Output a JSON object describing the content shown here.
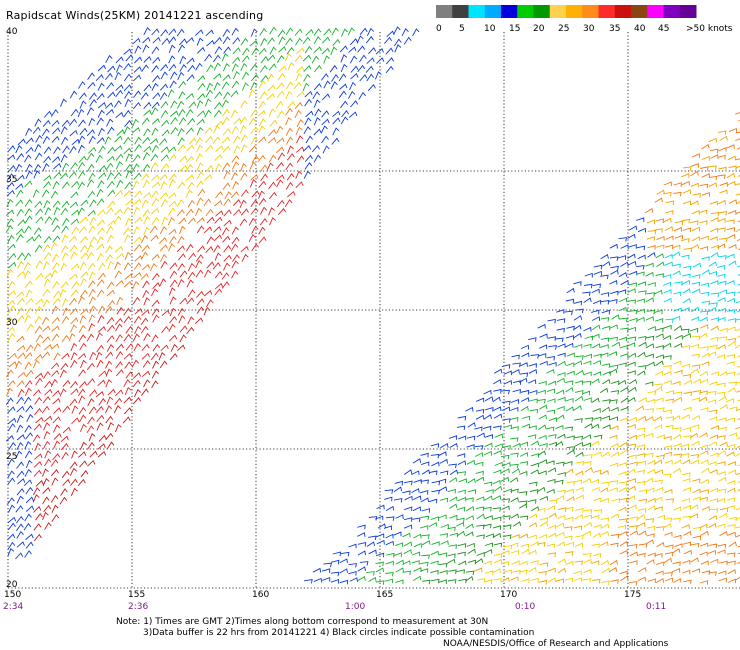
{
  "title": "Rapidscat Winds(25KM) 20141221 ascending",
  "legend": {
    "labels": [
      "0",
      "5",
      "10",
      "15",
      "20",
      "25",
      "30",
      "35",
      "40",
      "45",
      ">50 knots"
    ],
    "colors": [
      "#7f7f7f",
      "#404040",
      "#00e5ff",
      "#00aaff",
      "#0000dd",
      "#00cc00",
      "#009900",
      "#ffd24d",
      "#ffb000",
      "#ff8c1a",
      "#ff2b2b",
      "#cc1010",
      "#8b4513",
      "#ff00ff",
      "#8000c0",
      "#660099"
    ]
  },
  "lat_labels": [
    "40",
    "35",
    "30",
    "25",
    "20"
  ],
  "lon_labels": [
    "150",
    "155",
    "160",
    "165",
    "170",
    "175"
  ],
  "time_labels": [
    "2:34",
    "2:36",
    "1:00",
    "0:10",
    "0:11"
  ],
  "notes": {
    "line1": "Note: 1) Times are GMT 2)Times along bottom correspond to measurement at 30N",
    "line2": "3)Data buffer is 22 hrs from 20141221 4) Black circles indicate possible contamination",
    "credit": "NOAA/NESDIS/Office of Research and Applications"
  },
  "map": {
    "lat_range": [
      20,
      40
    ],
    "lon_range": [
      150,
      178.5
    ],
    "grid": true,
    "speed_colors": [
      "#000000",
      "#00d5e8",
      "#0a3adc",
      "#16b12a",
      "#1e8f1e",
      "#f5d000",
      "#f4a300",
      "#f07a18",
      "#e52222",
      "#c91818",
      "#8b4513"
    ]
  }
}
